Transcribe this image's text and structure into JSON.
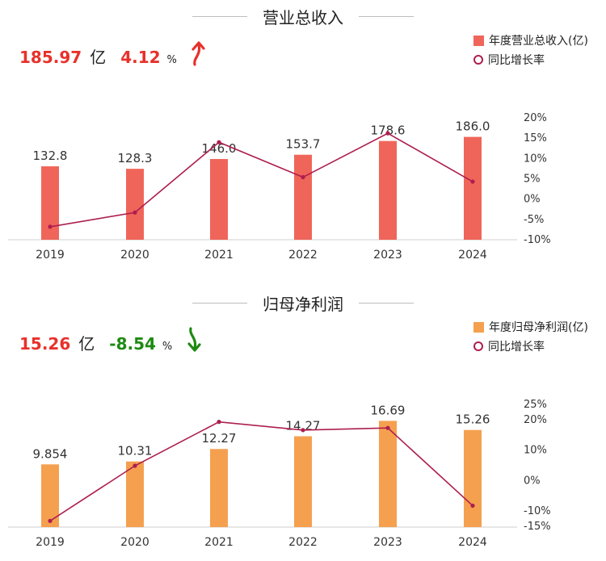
{
  "chart_data": [
    {
      "type": "bar",
      "title": "营业总收入",
      "summary": {
        "total": "185.97",
        "unit": "亿",
        "pct": "4.12",
        "pct_sign": "%",
        "direction": "up"
      },
      "categories": [
        "2019",
        "2020",
        "2021",
        "2022",
        "2023",
        "2024"
      ],
      "series": [
        {
          "name": "年度营业总收入(亿)",
          "type": "bar",
          "axis": "left",
          "color": "#f0655a",
          "values": [
            132.8,
            128.3,
            146.0,
            153.7,
            178.6,
            186.0
          ],
          "labels": [
            "132.8",
            "128.3",
            "146.0",
            "153.7",
            "178.6",
            "186.0"
          ]
        },
        {
          "name": "同比增长率",
          "type": "line",
          "axis": "right",
          "color": "#ad1e4f",
          "values": [
            -7.0,
            -3.5,
            13.8,
            5.2,
            16.0,
            4.1
          ]
        }
      ],
      "y_right": {
        "ticks": [
          "20%",
          "15%",
          "10%",
          "5%",
          "0%",
          "-5%",
          "-10%"
        ],
        "tick_values": [
          20,
          15,
          10,
          5,
          0,
          -5,
          -10
        ],
        "range": [
          -10,
          20
        ]
      },
      "y_left_range": [
        0,
        200
      ],
      "legend_position": "top-right",
      "grid": false
    },
    {
      "type": "bar",
      "title": "归母净利润",
      "summary": {
        "total": "15.26",
        "unit": "亿",
        "pct": "-8.54",
        "pct_sign": "%",
        "direction": "down"
      },
      "categories": [
        "2019",
        "2020",
        "2021",
        "2022",
        "2023",
        "2024"
      ],
      "series": [
        {
          "name": "年度归母净利润(亿)",
          "type": "bar",
          "axis": "left",
          "color": "#f5a04f",
          "values": [
            9.854,
            10.31,
            12.27,
            14.27,
            16.69,
            15.26
          ],
          "labels": [
            "9.854",
            "10.31",
            "12.27",
            "14.27",
            "16.69",
            "15.26"
          ]
        },
        {
          "name": "同比增长率",
          "type": "line",
          "axis": "right",
          "color": "#ad1e4f",
          "values": [
            -13.5,
            4.6,
            19.0,
            16.3,
            17.0,
            -8.5
          ]
        }
      ],
      "y_right": {
        "ticks": [
          "25%",
          "20%",
          "10%",
          "0%",
          "-10%",
          "-15%"
        ],
        "tick_values": [
          25,
          20,
          10,
          0,
          -10,
          -15
        ],
        "range": [
          -15,
          25
        ]
      },
      "y_left_range": [
        0,
        17.5
      ],
      "legend_position": "top-right",
      "grid": false
    }
  ]
}
